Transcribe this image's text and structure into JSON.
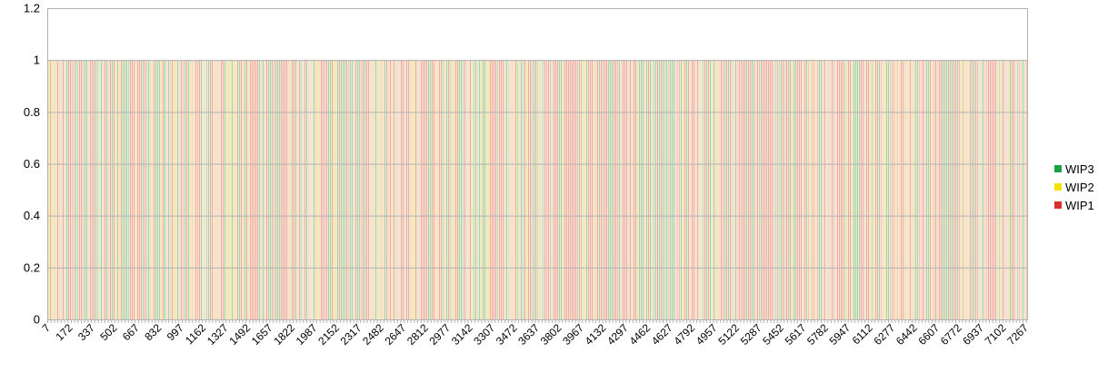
{
  "chart_data": {
    "type": "bar",
    "stacked": true,
    "title": "",
    "xlabel": "",
    "ylabel": "",
    "ylim": [
      0,
      1.2
    ],
    "yticks": [
      "0",
      "0.2",
      "0.4",
      "0.6",
      "0.8",
      "1",
      "1.2"
    ],
    "grid": true,
    "legend_position": "right",
    "x_tick_labels": [
      "7",
      "172",
      "337",
      "502",
      "667",
      "832",
      "997",
      "1162",
      "1327",
      "1492",
      "1657",
      "1822",
      "1987",
      "2152",
      "2317",
      "2482",
      "2647",
      "2812",
      "2977",
      "3142",
      "3307",
      "3472",
      "3637",
      "3802",
      "3967",
      "4132",
      "4297",
      "4462",
      "4627",
      "4792",
      "4957",
      "5122",
      "5287",
      "5452",
      "5617",
      "5782",
      "5947",
      "6112",
      "6277",
      "6442",
      "6607",
      "6772",
      "6937",
      "7102",
      "7267"
    ],
    "x_start": 7,
    "x_end": 7288,
    "each_bar_value": 1,
    "series": [
      {
        "name": "WIP3",
        "color": "#1aa14a"
      },
      {
        "name": "WIP2",
        "color": "#f2e300"
      },
      {
        "name": "WIP1",
        "color": "#d9302b"
      }
    ]
  }
}
